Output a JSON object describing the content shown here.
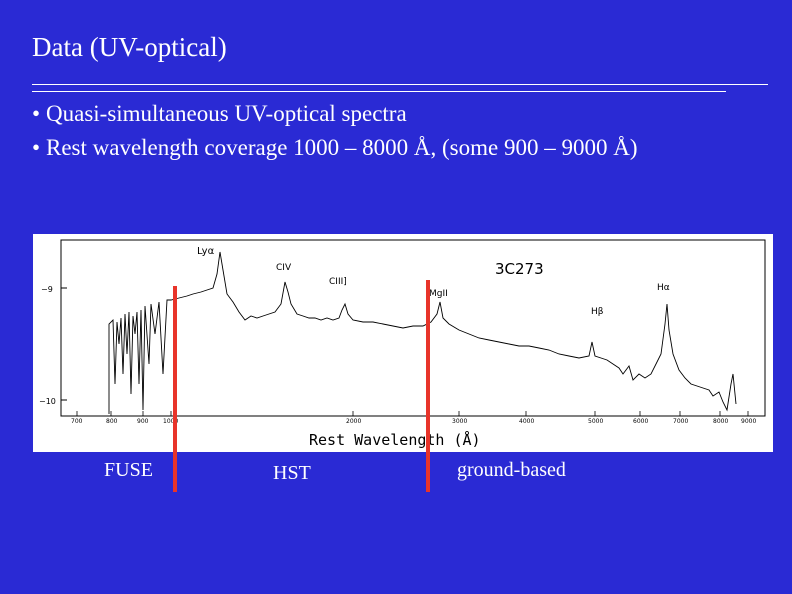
{
  "slide": {
    "title": "Data (UV-optical)",
    "bullets": [
      "Quasi-simultaneous UV-optical spectra",
      "Rest wavelength coverage 1000 – 8000 Å, (some 900 – 9000 Å)"
    ],
    "bullet_symbol": "•"
  },
  "figure": {
    "object_name": "3C273",
    "xlabel_part1": "Rest Wavelength (Å)",
    "y_ticks": [
      "−9",
      "−10"
    ],
    "x_ticks": [
      "700",
      "800",
      "900",
      "1000",
      "2000",
      "3000",
      "4000",
      "5000",
      "6000",
      "7000",
      "8000",
      "9000"
    ],
    "line_labels": {
      "lya": "Lyα",
      "civ": "CIV",
      "ciii": "CIII]",
      "mgii": "MgII",
      "hbeta": "Hβ",
      "halpha": "Hα"
    }
  },
  "instruments": {
    "fuse": "FUSE",
    "hst": "HST",
    "ground": "ground-based"
  },
  "colors": {
    "background": "#2a2ad4",
    "marker": "#e8342a",
    "text": "#ffffff"
  }
}
